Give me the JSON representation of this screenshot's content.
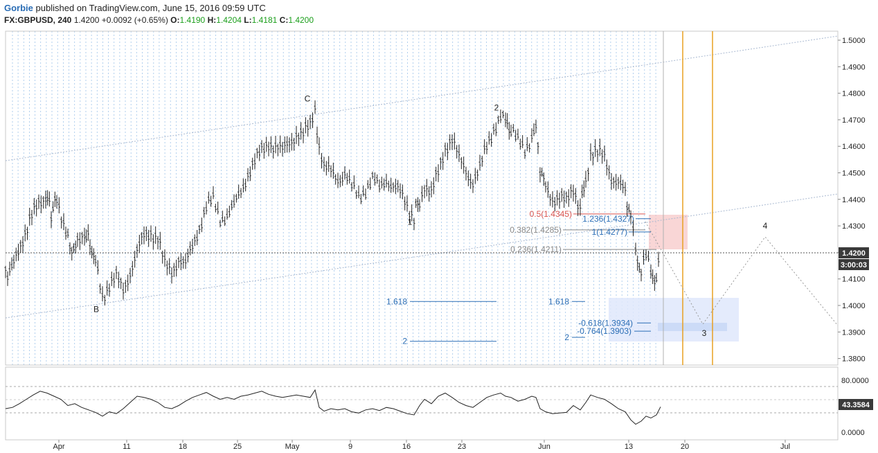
{
  "header": {
    "author": "Gorbie",
    "published": " published on TradingView.com, June 15, 2016 09:59 UTC",
    "symbol": "FX:GBPUSD, 240",
    "last": "1.4200",
    "change": "+0.0092 (+0.65%)",
    "o_label": "O:",
    "o_value": "1.4190",
    "h_label": "H:",
    "h_value": "1.4204",
    "l_label": "L:",
    "l_value": "1.4181",
    "c_label": "C:",
    "c_value": "1.4200"
  },
  "colors": {
    "accent_blue": "#2a6db5",
    "fib_red": "#d9534f",
    "vertical_orange": "#e8a020",
    "price_tag": "#3a3a3a"
  },
  "chart_data": {
    "type": "line",
    "series_name": "",
    "x_axis": {
      "tick_labels": [
        "Apr",
        "11",
        "18",
        "25",
        "May",
        "9",
        "16",
        "23",
        "Jun",
        "13",
        "20",
        "Jul"
      ]
    },
    "y_axis": {
      "range": [
        1.375,
        1.505
      ],
      "tick_labels": [
        "1.5000",
        "1.4900",
        "1.4800",
        "1.4700",
        "1.4600",
        "1.4500",
        "1.4400",
        "1.4300",
        "1.4200",
        "1.4100",
        "1.4000",
        "1.3900",
        "1.3800"
      ]
    },
    "price_path": [
      [
        0,
        1.4125
      ],
      [
        12,
        1.415
      ],
      [
        25,
        1.426
      ],
      [
        38,
        1.433
      ],
      [
        48,
        1.439
      ],
      [
        58,
        1.442
      ],
      [
        66,
        1.435
      ],
      [
        74,
        1.44
      ],
      [
        84,
        1.432
      ],
      [
        93,
        1.421
      ],
      [
        104,
        1.423
      ],
      [
        114,
        1.428
      ],
      [
        122,
        1.423
      ],
      [
        130,
        1.416
      ],
      [
        140,
        1.404
      ],
      [
        150,
        1.408
      ],
      [
        160,
        1.41
      ],
      [
        170,
        1.406
      ],
      [
        180,
        1.413
      ],
      [
        190,
        1.42
      ],
      [
        200,
        1.426
      ],
      [
        210,
        1.428
      ],
      [
        220,
        1.426
      ],
      [
        230,
        1.415
      ],
      [
        240,
        1.413
      ],
      [
        250,
        1.418
      ],
      [
        260,
        1.415
      ],
      [
        270,
        1.422
      ],
      [
        280,
        1.43
      ],
      [
        290,
        1.437
      ],
      [
        300,
        1.439
      ],
      [
        310,
        1.433
      ],
      [
        320,
        1.434
      ],
      [
        330,
        1.437
      ],
      [
        340,
        1.443
      ],
      [
        350,
        1.45
      ],
      [
        360,
        1.454
      ],
      [
        370,
        1.458
      ],
      [
        380,
        1.462
      ],
      [
        390,
        1.46
      ],
      [
        400,
        1.458
      ],
      [
        410,
        1.462
      ],
      [
        420,
        1.465
      ],
      [
        430,
        1.464
      ],
      [
        440,
        1.468
      ],
      [
        447,
        1.474
      ],
      [
        453,
        1.46
      ],
      [
        460,
        1.452
      ],
      [
        470,
        1.45
      ],
      [
        480,
        1.448
      ],
      [
        490,
        1.45
      ],
      [
        500,
        1.444
      ],
      [
        510,
        1.441
      ],
      [
        520,
        1.444
      ],
      [
        530,
        1.447
      ],
      [
        540,
        1.444
      ],
      [
        550,
        1.448
      ],
      [
        560,
        1.445
      ],
      [
        570,
        1.442
      ],
      [
        580,
        1.438
      ],
      [
        590,
        1.434
      ],
      [
        598,
        1.44
      ],
      [
        605,
        1.446
      ],
      [
        615,
        1.442
      ],
      [
        625,
        1.45
      ],
      [
        635,
        1.46
      ],
      [
        645,
        1.463
      ],
      [
        655,
        1.455
      ],
      [
        665,
        1.451
      ],
      [
        675,
        1.447
      ],
      [
        685,
        1.451
      ],
      [
        695,
        1.46
      ],
      [
        705,
        1.467
      ],
      [
        715,
        1.471
      ],
      [
        722,
        1.469
      ],
      [
        730,
        1.466
      ],
      [
        740,
        1.461
      ],
      [
        750,
        1.459
      ],
      [
        760,
        1.464
      ],
      [
        766,
        1.466
      ],
      [
        772,
        1.452
      ],
      [
        780,
        1.445
      ],
      [
        790,
        1.441
      ],
      [
        800,
        1.44
      ],
      [
        810,
        1.439
      ],
      [
        820,
        1.445
      ],
      [
        830,
        1.437
      ],
      [
        838,
        1.448
      ],
      [
        845,
        1.458
      ],
      [
        855,
        1.457
      ],
      [
        865,
        1.456
      ],
      [
        875,
        1.449
      ],
      [
        885,
        1.446
      ],
      [
        895,
        1.442
      ],
      [
        903,
        1.433
      ],
      [
        910,
        1.42
      ],
      [
        918,
        1.412
      ],
      [
        925,
        1.418
      ],
      [
        932,
        1.412
      ],
      [
        940,
        1.409
      ],
      [
        946,
        1.42
      ]
    ],
    "rsi": {
      "range": [
        0,
        100
      ],
      "tick_labels": [
        "80.0000",
        "0.0000"
      ],
      "last_label": "43.3584",
      "path": [
        [
          0,
          40
        ],
        [
          10,
          42
        ],
        [
          20,
          48
        ],
        [
          30,
          55
        ],
        [
          40,
          62
        ],
        [
          50,
          68
        ],
        [
          60,
          65
        ],
        [
          70,
          60
        ],
        [
          80,
          55
        ],
        [
          90,
          45
        ],
        [
          100,
          48
        ],
        [
          110,
          42
        ],
        [
          120,
          38
        ],
        [
          130,
          34
        ],
        [
          140,
          28
        ],
        [
          150,
          35
        ],
        [
          160,
          32
        ],
        [
          170,
          40
        ],
        [
          180,
          50
        ],
        [
          190,
          60
        ],
        [
          200,
          58
        ],
        [
          210,
          55
        ],
        [
          220,
          50
        ],
        [
          230,
          42
        ],
        [
          240,
          40
        ],
        [
          250,
          45
        ],
        [
          260,
          52
        ],
        [
          270,
          58
        ],
        [
          280,
          62
        ],
        [
          290,
          66
        ],
        [
          300,
          60
        ],
        [
          310,
          55
        ],
        [
          320,
          58
        ],
        [
          330,
          55
        ],
        [
          340,
          60
        ],
        [
          350,
          62
        ],
        [
          360,
          65
        ],
        [
          370,
          68
        ],
        [
          380,
          63
        ],
        [
          390,
          60
        ],
        [
          400,
          58
        ],
        [
          410,
          60
        ],
        [
          420,
          62
        ],
        [
          430,
          60
        ],
        [
          440,
          58
        ],
        [
          447,
          70
        ],
        [
          453,
          42
        ],
        [
          460,
          36
        ],
        [
          470,
          40
        ],
        [
          480,
          38
        ],
        [
          490,
          40
        ],
        [
          500,
          35
        ],
        [
          510,
          33
        ],
        [
          520,
          38
        ],
        [
          530,
          40
        ],
        [
          540,
          37
        ],
        [
          550,
          42
        ],
        [
          560,
          40
        ],
        [
          570,
          36
        ],
        [
          580,
          32
        ],
        [
          590,
          30
        ],
        [
          598,
          45
        ],
        [
          605,
          55
        ],
        [
          615,
          48
        ],
        [
          625,
          60
        ],
        [
          635,
          65
        ],
        [
          645,
          58
        ],
        [
          655,
          50
        ],
        [
          665,
          45
        ],
        [
          675,
          42
        ],
        [
          685,
          50
        ],
        [
          695,
          58
        ],
        [
          705,
          62
        ],
        [
          715,
          65
        ],
        [
          722,
          60
        ],
        [
          730,
          58
        ],
        [
          740,
          52
        ],
        [
          750,
          55
        ],
        [
          760,
          60
        ],
        [
          766,
          58
        ],
        [
          772,
          40
        ],
        [
          780,
          35
        ],
        [
          790,
          32
        ],
        [
          800,
          33
        ],
        [
          810,
          34
        ],
        [
          820,
          45
        ],
        [
          830,
          38
        ],
        [
          838,
          50
        ],
        [
          845,
          62
        ],
        [
          855,
          58
        ],
        [
          865,
          55
        ],
        [
          875,
          48
        ],
        [
          885,
          40
        ],
        [
          895,
          35
        ],
        [
          903,
          22
        ],
        [
          910,
          15
        ],
        [
          918,
          20
        ],
        [
          925,
          28
        ],
        [
          932,
          25
        ],
        [
          940,
          30
        ],
        [
          946,
          43
        ]
      ]
    },
    "current_price_label": "1.4200",
    "countdown_label": "3:00:03",
    "fib_levels": [
      {
        "label": "0.5(1.4345)",
        "value": 1.4345,
        "color": "#d9534f"
      },
      {
        "label": "1.236(1.4327)",
        "value": 1.4327,
        "color": "#2a6db5"
      },
      {
        "label": "0.382(1.4285)",
        "value": 1.4285,
        "color": "#888888"
      },
      {
        "label": "1(1.4277)",
        "value": 1.4277,
        "color": "#2a6db5"
      },
      {
        "label": "0.236(1.4211)",
        "value": 1.4211,
        "color": "#888888"
      },
      {
        "label": "-0.618(1.3934)",
        "value": 1.3934,
        "color": "#2a6db5"
      },
      {
        "label": "-0.764(1.3903)",
        "value": 1.3903,
        "color": "#2a6db5"
      }
    ],
    "extension_labels": [
      {
        "label": "1.618",
        "value": 1.4015,
        "group": "left"
      },
      {
        "label": "2",
        "value": 1.3865,
        "group": "left"
      },
      {
        "label": "1.618",
        "value": 1.4015,
        "group": "right"
      },
      {
        "label": "2",
        "value": 1.388,
        "group": "right"
      }
    ],
    "wave_labels": [
      {
        "label": "B",
        "value": 1.3985
      },
      {
        "label": "C",
        "value": 1.478
      },
      {
        "label": "1",
        "value": 1.4315
      },
      {
        "label": "2",
        "value": 1.4745
      },
      {
        "label": "3",
        "value": 1.3895
      },
      {
        "label": "4",
        "value": 1.43
      }
    ]
  }
}
